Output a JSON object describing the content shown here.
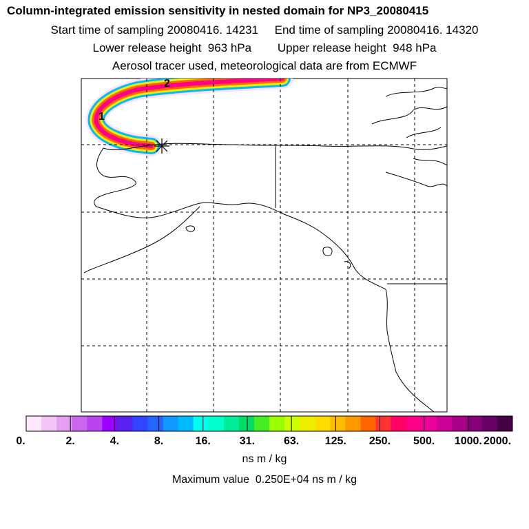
{
  "header": {
    "title": "Column-integrated emission sensitivity in nested domain for NP3_20080415",
    "line2": "Start time of sampling 20080416. 14231     End time of sampling 20080416. 14320",
    "line3": "Lower release height  963 hPa        Upper release height  948 hPa",
    "line4": "Aerosol tracer used, meteorological data are from ECMWF"
  },
  "map": {
    "trajectory_labels": [
      "1",
      "2"
    ],
    "receptor_marker": "asterisk-icon"
  },
  "colorbar": {
    "tick_labels": [
      "0.",
      "2.",
      "4.",
      "8.",
      "16.",
      "31.",
      "63.",
      "125.",
      "250.",
      "500.",
      "1000.",
      "2000."
    ],
    "colors": [
      "#fde8fd",
      "#f2c4f7",
      "#e6a0f2",
      "#cc66ee",
      "#bb44ee",
      "#9900ff",
      "#5522ee",
      "#3344ff",
      "#2266ff",
      "#1199ff",
      "#00bbff",
      "#00ffee",
      "#00ffcc",
      "#00ee99",
      "#00dd66",
      "#44ee22",
      "#99ff00",
      "#ccff00",
      "#eeee00",
      "#ffdd00",
      "#ffbb00",
      "#ff9900",
      "#ff6600",
      "#ff3333",
      "#ff0066",
      "#ff0088",
      "#ee0099",
      "#cc0099",
      "#aa0088",
      "#880077",
      "#660066",
      "#440044"
    ],
    "units": "ns m / kg"
  },
  "footer": {
    "max_value": "Maximum value  0.250E+04 ns m / kg"
  }
}
